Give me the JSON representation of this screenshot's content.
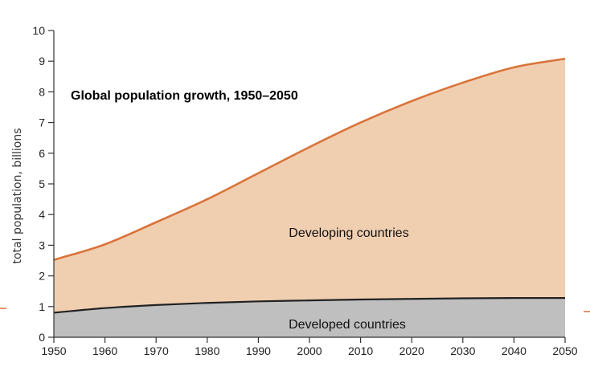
{
  "chart_data": {
    "type": "area",
    "title": "Global population growth, 1950–2050",
    "xlabel": "",
    "ylabel": "total population, billions",
    "xlim": [
      1950,
      2050
    ],
    "ylim": [
      0,
      10
    ],
    "x_ticks": [
      1950,
      1960,
      1970,
      1980,
      1990,
      2000,
      2010,
      2020,
      2030,
      2040,
      2050
    ],
    "y_ticks": [
      0,
      1,
      2,
      3,
      4,
      5,
      6,
      7,
      8,
      9,
      10
    ],
    "grid": false,
    "stacked": true,
    "x": [
      1950,
      1960,
      1970,
      1980,
      1990,
      2000,
      2010,
      2020,
      2030,
      2040,
      2050
    ],
    "series": [
      {
        "name": "Developed countries",
        "values": [
          0.8,
          0.95,
          1.05,
          1.12,
          1.17,
          1.2,
          1.23,
          1.25,
          1.27,
          1.28,
          1.28
        ],
        "fill": "#c0bfc0",
        "line": "#222222"
      },
      {
        "name": "Developing countries",
        "values": [
          1.72,
          2.08,
          2.7,
          3.38,
          4.18,
          5.0,
          5.77,
          6.45,
          7.03,
          7.52,
          7.8
        ],
        "fill": "#f0cfb1",
        "line": "#d9733a"
      }
    ],
    "colors": {
      "axis": "#333333",
      "edge_marker": "#d9733a"
    }
  }
}
